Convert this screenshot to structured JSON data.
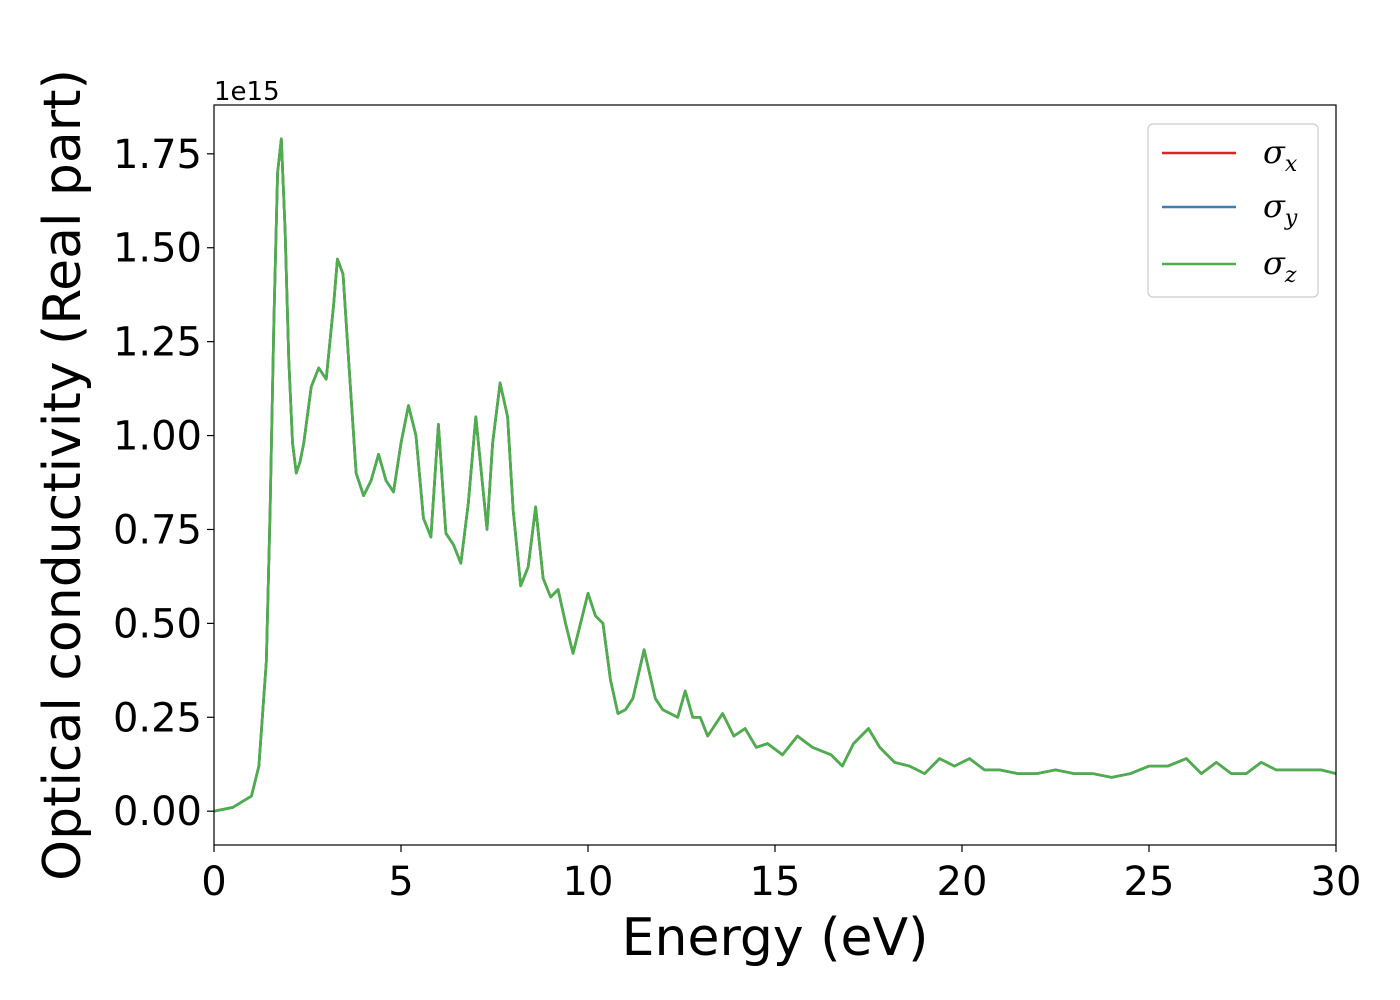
{
  "chart_data": {
    "type": "line",
    "title": "",
    "xlabel": "Energy (eV)",
    "ylabel": "Optical conductivity (Real part)",
    "y_offset_label": "1e15",
    "xlim": [
      0,
      30
    ],
    "ylim": [
      -0.09,
      1.88
    ],
    "x_ticks": [
      0,
      5,
      10,
      15,
      20,
      25,
      30
    ],
    "x_tick_labels": [
      "0",
      "5",
      "10",
      "15",
      "20",
      "25",
      "30"
    ],
    "y_ticks": [
      0.0,
      0.25,
      0.5,
      0.75,
      1.0,
      1.25,
      1.5,
      1.75
    ],
    "y_tick_labels": [
      "0.00",
      "0.25",
      "0.50",
      "0.75",
      "1.00",
      "1.25",
      "1.50",
      "1.75"
    ],
    "grid": false,
    "legend_position": "top-right",
    "x": [
      0,
      0.5,
      1.0,
      1.2,
      1.4,
      1.5,
      1.6,
      1.7,
      1.8,
      1.9,
      2.0,
      2.1,
      2.2,
      2.3,
      2.4,
      2.6,
      2.8,
      3.0,
      3.2,
      3.3,
      3.45,
      3.6,
      3.8,
      4.0,
      4.2,
      4.4,
      4.6,
      4.8,
      5.0,
      5.2,
      5.4,
      5.6,
      5.8,
      6.0,
      6.2,
      6.4,
      6.6,
      6.8,
      7.0,
      7.2,
      7.3,
      7.45,
      7.65,
      7.85,
      8.0,
      8.2,
      8.4,
      8.6,
      8.8,
      9.0,
      9.2,
      9.4,
      9.6,
      9.8,
      10.0,
      10.2,
      10.4,
      10.6,
      10.8,
      11.0,
      11.2,
      11.5,
      11.8,
      12.0,
      12.4,
      12.6,
      12.8,
      13.0,
      13.2,
      13.6,
      13.9,
      14.2,
      14.5,
      14.8,
      15.2,
      15.6,
      16.0,
      16.5,
      16.8,
      17.1,
      17.5,
      17.8,
      18.2,
      18.6,
      19.0,
      19.4,
      19.8,
      20.2,
      20.6,
      21.0,
      21.5,
      22.0,
      22.5,
      23.0,
      23.5,
      24.0,
      24.5,
      25.0,
      25.5,
      26.0,
      26.4,
      26.8,
      27.2,
      27.6,
      28.0,
      28.4,
      28.8,
      29.2,
      29.6,
      30.0
    ],
    "series": [
      {
        "name": "σx",
        "label_base": "σ",
        "label_sub": "x",
        "color": "#d62728",
        "values": [
          0.0,
          0.01,
          0.04,
          0.12,
          0.4,
          0.8,
          1.3,
          1.7,
          1.79,
          1.55,
          1.2,
          0.98,
          0.9,
          0.93,
          0.98,
          1.13,
          1.18,
          1.15,
          1.35,
          1.47,
          1.43,
          1.2,
          0.9,
          0.84,
          0.88,
          0.95,
          0.88,
          0.85,
          0.98,
          1.08,
          1.0,
          0.78,
          0.73,
          1.03,
          0.74,
          0.71,
          0.66,
          0.82,
          1.05,
          0.85,
          0.75,
          0.98,
          1.14,
          1.05,
          0.8,
          0.6,
          0.65,
          0.81,
          0.62,
          0.57,
          0.59,
          0.5,
          0.42,
          0.5,
          0.58,
          0.52,
          0.5,
          0.35,
          0.26,
          0.27,
          0.3,
          0.43,
          0.3,
          0.27,
          0.25,
          0.32,
          0.25,
          0.25,
          0.2,
          0.26,
          0.2,
          0.22,
          0.17,
          0.18,
          0.15,
          0.2,
          0.17,
          0.15,
          0.12,
          0.18,
          0.22,
          0.17,
          0.13,
          0.12,
          0.1,
          0.14,
          0.12,
          0.14,
          0.11,
          0.11,
          0.1,
          0.1,
          0.11,
          0.1,
          0.1,
          0.09,
          0.1,
          0.12,
          0.12,
          0.14,
          0.1,
          0.13,
          0.1,
          0.1,
          0.13,
          0.11,
          0.11,
          0.11,
          0.11,
          0.1
        ]
      },
      {
        "name": "σy",
        "label_base": "σ",
        "label_sub": "y",
        "color": "#3b7eb5",
        "values": [
          0.0,
          0.01,
          0.04,
          0.12,
          0.4,
          0.8,
          1.3,
          1.7,
          1.79,
          1.55,
          1.2,
          0.98,
          0.9,
          0.93,
          0.98,
          1.13,
          1.18,
          1.15,
          1.35,
          1.47,
          1.43,
          1.2,
          0.9,
          0.84,
          0.88,
          0.95,
          0.88,
          0.85,
          0.98,
          1.08,
          1.0,
          0.78,
          0.73,
          1.03,
          0.74,
          0.71,
          0.66,
          0.82,
          1.05,
          0.85,
          0.75,
          0.98,
          1.14,
          1.05,
          0.8,
          0.6,
          0.65,
          0.81,
          0.62,
          0.57,
          0.59,
          0.5,
          0.42,
          0.5,
          0.58,
          0.52,
          0.5,
          0.35,
          0.26,
          0.27,
          0.3,
          0.43,
          0.3,
          0.27,
          0.25,
          0.32,
          0.25,
          0.25,
          0.2,
          0.26,
          0.2,
          0.22,
          0.17,
          0.18,
          0.15,
          0.2,
          0.17,
          0.15,
          0.12,
          0.18,
          0.22,
          0.17,
          0.13,
          0.12,
          0.1,
          0.14,
          0.12,
          0.14,
          0.11,
          0.11,
          0.1,
          0.1,
          0.11,
          0.1,
          0.1,
          0.09,
          0.1,
          0.12,
          0.12,
          0.14,
          0.1,
          0.13,
          0.1,
          0.1,
          0.13,
          0.11,
          0.11,
          0.11,
          0.11,
          0.1
        ]
      },
      {
        "name": "σz",
        "label_base": "σ",
        "label_sub": "z",
        "color": "#4daf4a",
        "values": [
          0.0,
          0.01,
          0.04,
          0.12,
          0.4,
          0.8,
          1.3,
          1.7,
          1.79,
          1.55,
          1.2,
          0.98,
          0.9,
          0.93,
          0.98,
          1.13,
          1.18,
          1.15,
          1.35,
          1.47,
          1.43,
          1.2,
          0.9,
          0.84,
          0.88,
          0.95,
          0.88,
          0.85,
          0.98,
          1.08,
          1.0,
          0.78,
          0.73,
          1.03,
          0.74,
          0.71,
          0.66,
          0.82,
          1.05,
          0.85,
          0.75,
          0.98,
          1.14,
          1.05,
          0.8,
          0.6,
          0.65,
          0.81,
          0.62,
          0.57,
          0.59,
          0.5,
          0.42,
          0.5,
          0.58,
          0.52,
          0.5,
          0.35,
          0.26,
          0.27,
          0.3,
          0.43,
          0.3,
          0.27,
          0.25,
          0.32,
          0.25,
          0.25,
          0.2,
          0.26,
          0.2,
          0.22,
          0.17,
          0.18,
          0.15,
          0.2,
          0.17,
          0.15,
          0.12,
          0.18,
          0.22,
          0.17,
          0.13,
          0.12,
          0.1,
          0.14,
          0.12,
          0.14,
          0.11,
          0.11,
          0.1,
          0.1,
          0.11,
          0.1,
          0.1,
          0.09,
          0.1,
          0.12,
          0.12,
          0.14,
          0.1,
          0.13,
          0.1,
          0.1,
          0.13,
          0.11,
          0.11,
          0.11,
          0.11,
          0.1
        ]
      }
    ]
  }
}
